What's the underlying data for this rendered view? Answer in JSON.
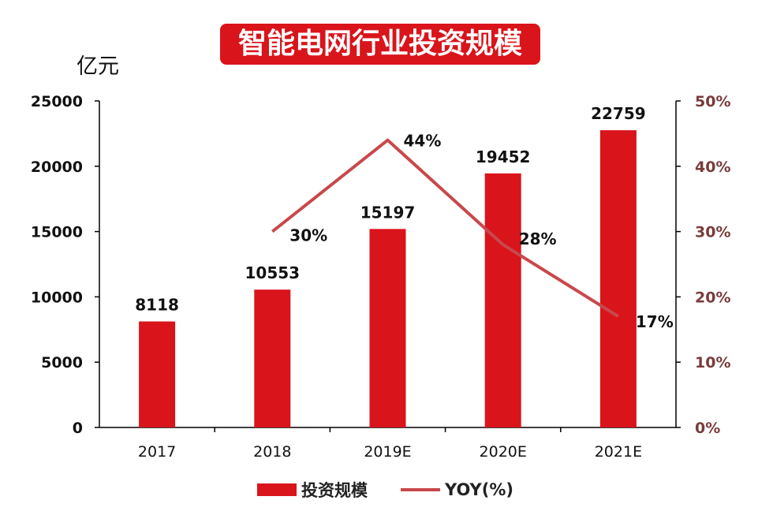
{
  "chart_data": {
    "type": "bar",
    "title": "智能电网行业投资规模",
    "ylabel": "亿元",
    "categories": [
      "2017",
      "2018",
      "2019E",
      "2020E",
      "2021E"
    ],
    "series": [
      {
        "name": "投资规模",
        "type": "bar",
        "axis": "left",
        "values": [
          8118,
          10553,
          15197,
          19452,
          22759
        ]
      },
      {
        "name": "YOY(%)",
        "type": "line",
        "axis": "right",
        "values": [
          null,
          30,
          44,
          28,
          17
        ]
      }
    ],
    "ylim": [
      0,
      25000
    ],
    "y_ticks": [
      "0",
      "5000",
      "10000",
      "15000",
      "20000",
      "25000"
    ],
    "y2lim": [
      0,
      50
    ],
    "y2_ticks": [
      "0%",
      "10%",
      "20%",
      "30%",
      "40%",
      "50%"
    ],
    "bar_labels": [
      "8118",
      "10553",
      "15197",
      "19452",
      "22759"
    ],
    "line_labels": [
      "",
      "30%",
      "44%",
      "28%",
      "17%"
    ],
    "legend_position": "bottom",
    "colors": {
      "bar": "#d9141b",
      "line": "#c8484c",
      "title_bg": "#d9141b",
      "right_axis_text": "#7a3b3b"
    }
  }
}
